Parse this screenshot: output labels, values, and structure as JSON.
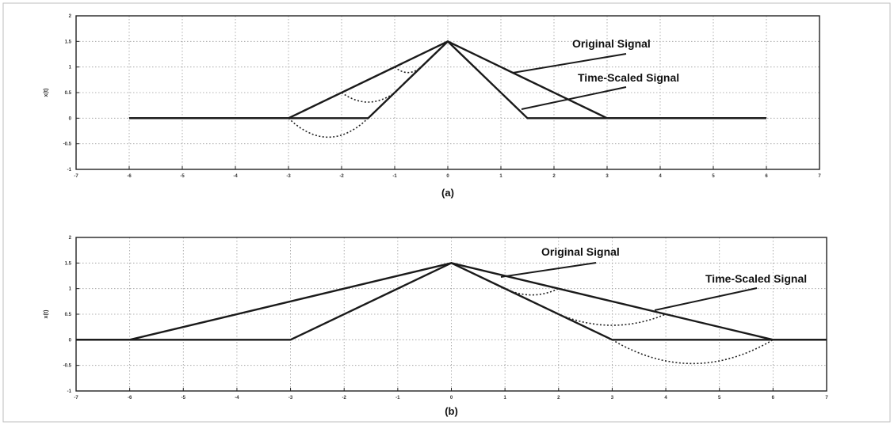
{
  "chart_data": [
    {
      "type": "line",
      "panel_label": "(a)",
      "ylabel": "x(t)",
      "xlim": [
        -7,
        7
      ],
      "ylim": [
        -1,
        2
      ],
      "xticks": [
        "-7",
        "-6",
        "-5",
        "-4",
        "-3",
        "-2",
        "-1",
        "0",
        "1",
        "2",
        "3",
        "4",
        "5",
        "6",
        "7"
      ],
      "yticks": [
        "-1",
        "-0.5",
        "0",
        "0.5",
        "1",
        "1.5",
        "2"
      ],
      "grid": true,
      "series": [
        {
          "name": "Original Signal",
          "x": [
            -6,
            -3,
            0,
            3,
            6
          ],
          "y": [
            0,
            0,
            1.5,
            0,
            0
          ]
        },
        {
          "name": "Time-Scaled Signal",
          "x": [
            -6,
            -1.5,
            0,
            1.5,
            6
          ],
          "y": [
            0,
            0,
            1.5,
            0,
            0
          ]
        }
      ],
      "annotations": [
        {
          "text": "Original Signal",
          "points_to": "Original Signal"
        },
        {
          "text": "Time-Scaled Signal",
          "points_to": "Time-Scaled Signal"
        }
      ]
    },
    {
      "type": "line",
      "panel_label": "(b)",
      "ylabel": "x(t)",
      "xlim": [
        -7,
        7
      ],
      "ylim": [
        -1,
        2
      ],
      "xticks": [
        "-7",
        "-6",
        "-5",
        "-4",
        "-3",
        "-2",
        "-1",
        "0",
        "1",
        "2",
        "3",
        "4",
        "5",
        "6",
        "7"
      ],
      "yticks": [
        "-1",
        "-0.5",
        "0",
        "0.5",
        "1",
        "1.5",
        "2"
      ],
      "grid": true,
      "series": [
        {
          "name": "Original Signal",
          "x": [
            -7,
            -3,
            0,
            3,
            7
          ],
          "y": [
            0,
            0,
            1.5,
            0,
            0
          ]
        },
        {
          "name": "Time-Scaled Signal",
          "x": [
            -7,
            -6,
            0,
            6,
            7
          ],
          "y": [
            0,
            0,
            1.5,
            0,
            0
          ]
        }
      ],
      "annotations": [
        {
          "text": "Original Signal",
          "points_to": "Original Signal"
        },
        {
          "text": "Time-Scaled Signal",
          "points_to": "Time-Scaled Signal"
        }
      ]
    }
  ]
}
